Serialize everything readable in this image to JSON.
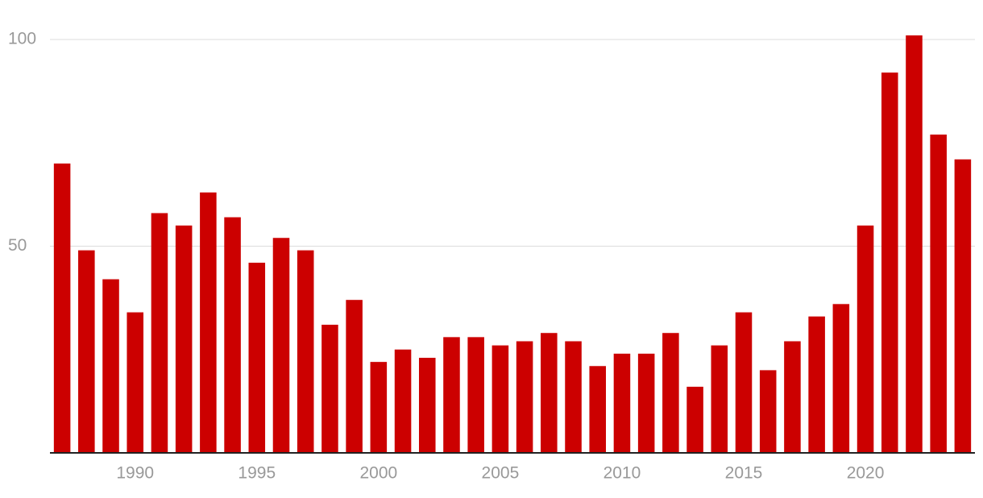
{
  "chart_data": {
    "type": "bar",
    "x": [
      1987,
      1988,
      1989,
      1990,
      1991,
      1992,
      1993,
      1994,
      1995,
      1996,
      1997,
      1998,
      1999,
      2000,
      2001,
      2002,
      2003,
      2004,
      2005,
      2006,
      2007,
      2008,
      2009,
      2010,
      2011,
      2012,
      2013,
      2014,
      2015,
      2016,
      2017,
      2018,
      2019,
      2020,
      2021,
      2022,
      2023,
      2024
    ],
    "values": [
      70,
      49,
      42,
      34,
      58,
      55,
      63,
      57,
      46,
      52,
      49,
      31,
      37,
      22,
      25,
      23,
      28,
      28,
      26,
      27,
      29,
      27,
      21,
      24,
      24,
      29,
      16,
      26,
      34,
      20,
      27,
      33,
      36,
      55,
      92,
      101,
      77,
      71
    ],
    "color": "#cc0000",
    "xlim": [
      1986.5,
      2024.5
    ],
    "xticks": [
      1990,
      1995,
      2000,
      2005,
      2010,
      2015,
      2020
    ],
    "ylim": [
      0,
      100
    ],
    "yticks": [
      50,
      100
    ],
    "grid": true
  }
}
